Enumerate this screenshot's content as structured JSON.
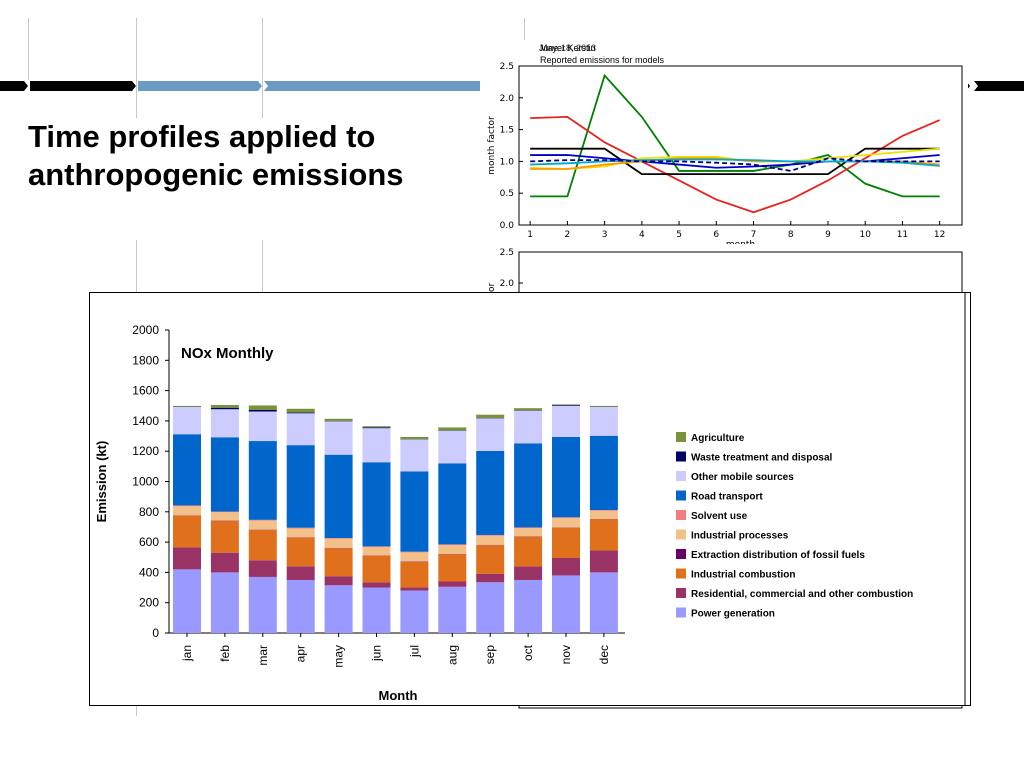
{
  "slide": {
    "title": "Time profiles applied to\nanthropogenic emissions"
  },
  "top_chart": {
    "stamp_line1": "Mayer Kerstin",
    "stamp_line1b": "June 18, 2013",
    "subtitle": "Reported emissions for models",
    "ylabel": "month factor",
    "xlabel": "month",
    "yticks": [
      "0.0",
      "0.5",
      "1.0",
      "1.5",
      "2.0",
      "2.5"
    ],
    "xticks": [
      "1",
      "2",
      "3",
      "4",
      "5",
      "6",
      "7",
      "8",
      "9",
      "10",
      "11",
      "12"
    ]
  },
  "lower_chart_partial": {
    "ylabel": "factor",
    "yticks": [
      "2.5",
      "2.0"
    ]
  },
  "chart_data": [
    {
      "type": "line",
      "title": "",
      "xlabel": "month",
      "ylabel": "month factor",
      "xlim": [
        0.7,
        12.6
      ],
      "ylim": [
        0,
        2.5
      ],
      "x": [
        1,
        2,
        3,
        4,
        5,
        6,
        7,
        8,
        9,
        10,
        11,
        12
      ],
      "series": [
        {
          "color": "#008000",
          "values": [
            0.45,
            0.45,
            2.35,
            1.7,
            0.85,
            0.85,
            0.85,
            0.95,
            1.1,
            0.65,
            0.45,
            0.45
          ],
          "dashed": false
        },
        {
          "color": "#e8231e",
          "values": [
            1.68,
            1.7,
            1.3,
            1.0,
            0.7,
            0.4,
            0.2,
            0.4,
            0.7,
            1.05,
            1.4,
            1.65
          ],
          "dashed": false
        },
        {
          "color": "#000000",
          "values": [
            1.2,
            1.2,
            1.2,
            0.8,
            0.8,
            0.8,
            0.8,
            0.8,
            0.8,
            1.2,
            1.2,
            1.2
          ],
          "dashed": false
        },
        {
          "color": "#0000cc",
          "values": [
            1.1,
            1.1,
            1.05,
            1.0,
            0.95,
            0.9,
            0.92,
            0.95,
            1.0,
            1.0,
            1.05,
            1.1
          ],
          "dashed": false
        },
        {
          "color": "#f0e000",
          "values": [
            0.9,
            0.88,
            0.92,
            1.05,
            1.07,
            1.07,
            1.0,
            1.0,
            1.05,
            1.1,
            1.15,
            1.2
          ],
          "dashed": false
        },
        {
          "color": "#ff9900",
          "values": [
            0.88,
            0.88,
            0.95,
            1.0,
            1.05,
            1.05,
            1.0,
            1.0,
            1.0,
            1.0,
            1.0,
            0.95
          ],
          "dashed": false
        },
        {
          "color": "#00aacc",
          "values": [
            0.95,
            0.97,
            1.0,
            1.02,
            1.03,
            1.03,
            1.02,
            1.0,
            1.0,
            1.0,
            0.98,
            0.93
          ],
          "dashed": false
        },
        {
          "color": "#000088",
          "values": [
            1.0,
            1.02,
            1.02,
            1.0,
            1.0,
            0.98,
            0.95,
            0.85,
            1.05,
            1.0,
            1.0,
            1.0
          ],
          "dashed": true
        }
      ]
    },
    {
      "type": "bar",
      "stacked": true,
      "title": "NOx Monthly",
      "xlabel": "Month",
      "ylabel": "Emission (kt)",
      "ylim": [
        0,
        2000
      ],
      "yticks": [
        "0",
        "200",
        "400",
        "600",
        "800",
        "1000",
        "1200",
        "1400",
        "1600",
        "1800",
        "2000"
      ],
      "categories": [
        "jan",
        "feb",
        "mar",
        "apr",
        "may",
        "jun",
        "jul",
        "aug",
        "sep",
        "oct",
        "nov",
        "dec"
      ],
      "legend_position": "right",
      "series": [
        {
          "name": "Power generation",
          "color": "#9999ff",
          "values": [
            420,
            400,
            370,
            350,
            315,
            300,
            280,
            305,
            335,
            350,
            380,
            400
          ]
        },
        {
          "name": "Residential, commercial and other combustion",
          "color": "#993366",
          "values": [
            145,
            130,
            110,
            90,
            60,
            35,
            20,
            35,
            55,
            90,
            115,
            145
          ]
        },
        {
          "name": "Industrial combustion",
          "color": "#e0701c",
          "values": [
            210,
            210,
            200,
            190,
            185,
            175,
            170,
            180,
            190,
            195,
            200,
            205
          ]
        },
        {
          "name": "Extraction distribution of fossil fuels",
          "color": "#660066",
          "values": [
            2,
            2,
            2,
            2,
            2,
            2,
            2,
            2,
            2,
            2,
            2,
            2
          ]
        },
        {
          "name": "Industrial processes",
          "color": "#f4c08a",
          "values": [
            60,
            55,
            60,
            58,
            60,
            55,
            60,
            58,
            60,
            55,
            62,
            55
          ]
        },
        {
          "name": "Solvent use",
          "color": "#f08080",
          "values": [
            5,
            5,
            5,
            5,
            5,
            5,
            5,
            5,
            5,
            5,
            5,
            5
          ]
        },
        {
          "name": "Road transport",
          "color": "#0066cc",
          "values": [
            470,
            490,
            520,
            545,
            550,
            555,
            530,
            535,
            555,
            555,
            530,
            490
          ]
        },
        {
          "name": "Other mobile sources",
          "color": "#ccccff",
          "values": [
            180,
            185,
            195,
            210,
            220,
            225,
            210,
            215,
            215,
            215,
            205,
            190
          ]
        },
        {
          "name": "Waste treatment and disposal",
          "color": "#000066",
          "values": [
            2,
            10,
            10,
            5,
            2,
            5,
            2,
            2,
            2,
            2,
            5,
            2
          ]
        },
        {
          "name": "Agriculture",
          "color": "#77933c",
          "values": [
            5,
            18,
            30,
            25,
            15,
            8,
            15,
            20,
            22,
            15,
            5,
            5
          ]
        }
      ]
    }
  ]
}
